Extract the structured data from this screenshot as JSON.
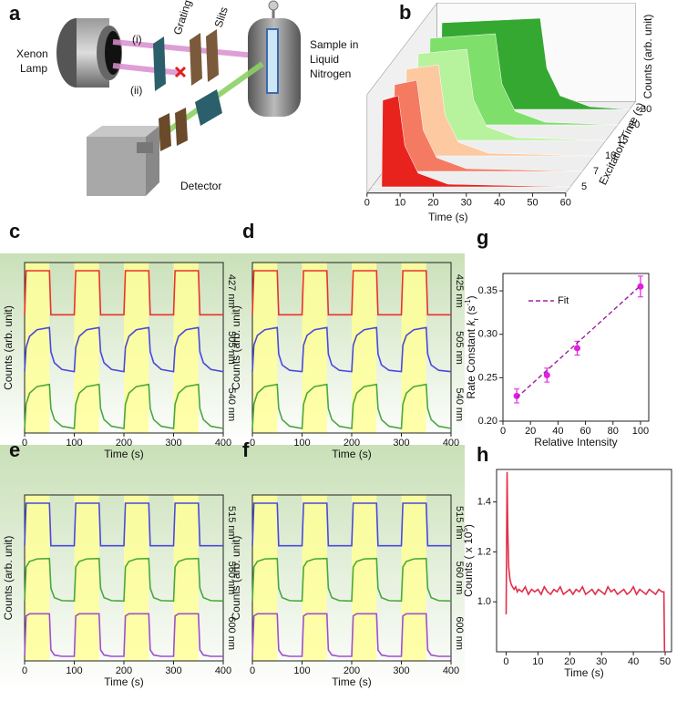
{
  "diagram": {
    "panel_label": "a",
    "lamp": [
      "Xenon",
      "Lamp"
    ],
    "path_i": "(i)",
    "path_ii": "(ii)",
    "grating": "Grating",
    "slits": "Slits",
    "sample": [
      "Sample in",
      "Liquid",
      "Nitrogen"
    ],
    "detector": "Detector"
  },
  "chart_data": [
    {
      "type": "waterfall",
      "panel_label": "b",
      "xlabel": "Time (s)",
      "ylabel": "Counts (arb. unit)",
      "zlabel": "Excitation Time (s)",
      "xlim": [
        0,
        60
      ],
      "xticks": [
        0,
        10,
        20,
        30,
        40,
        50,
        60
      ],
      "ylim": [
        0,
        1
      ],
      "series": [
        {
          "name": "5",
          "color": "#e8231d",
          "x": [
            0,
            3,
            3.3,
            8,
            10,
            14,
            23,
            60
          ],
          "values": [
            0,
            0,
            0.95,
            1,
            0.45,
            0.15,
            0.03,
            0
          ]
        },
        {
          "name": "7",
          "color": "#f47a62",
          "x": [
            0,
            3,
            3.3,
            10,
            12,
            16,
            25,
            60
          ],
          "values": [
            0,
            0,
            0.95,
            1,
            0.45,
            0.15,
            0.03,
            0
          ]
        },
        {
          "name": "10",
          "color": "#fcc9a0",
          "x": [
            0,
            3,
            3.3,
            13,
            15,
            19,
            28,
            60
          ],
          "values": [
            0,
            0,
            0.95,
            1,
            0.45,
            0.15,
            0.03,
            0
          ]
        },
        {
          "name": "15",
          "color": "#b7f29d",
          "x": [
            0,
            3,
            3.3,
            18,
            20,
            24,
            33,
            60
          ],
          "values": [
            0,
            0,
            0.95,
            1,
            0.45,
            0.15,
            0.03,
            0
          ]
        },
        {
          "name": "20",
          "color": "#7ee06a",
          "x": [
            0,
            3,
            3.3,
            23,
            25,
            29,
            38,
            60
          ],
          "values": [
            0,
            0,
            0.95,
            1,
            0.45,
            0.15,
            0.03,
            0
          ]
        },
        {
          "name": "30",
          "color": "#35a832",
          "x": [
            0,
            3,
            3.3,
            33,
            35,
            39,
            48,
            60
          ],
          "values": [
            0,
            0,
            0.95,
            1,
            0.45,
            0.15,
            0.03,
            0
          ]
        }
      ]
    },
    {
      "type": "line",
      "panel_label": "c",
      "xlabel": "Time (s)",
      "ylabel": "Counts (arb. unit)",
      "xlim": [
        0,
        400
      ],
      "xticks": [
        0,
        100,
        200,
        300,
        400
      ],
      "ylim": [
        0,
        1
      ],
      "shaded": [
        [
          0,
          50
        ],
        [
          100,
          150
        ],
        [
          200,
          250
        ],
        [
          300,
          350
        ]
      ],
      "shade_color": "#ffff9a",
      "x": [
        0,
        3,
        10,
        25,
        50,
        53,
        60,
        75,
        100,
        103,
        110,
        125,
        150,
        153,
        160,
        175,
        200,
        203,
        210,
        225,
        250,
        253,
        260,
        275,
        300,
        303,
        310,
        325,
        350,
        353,
        360,
        375,
        400
      ],
      "series": [
        {
          "name": "427 nm",
          "color": "#e8342a",
          "values": [
            0,
            1,
            1,
            1,
            1,
            0,
            0,
            0,
            0,
            1,
            1,
            1,
            1,
            0,
            0,
            0,
            0,
            1,
            1,
            1,
            1,
            0,
            0,
            0,
            0,
            1,
            1,
            1,
            1,
            0,
            0,
            0,
            0
          ]
        },
        {
          "name": "505 nm",
          "color": "#4a4ad8",
          "values": [
            0,
            0.55,
            0.8,
            0.95,
            1,
            0.45,
            0.2,
            0.05,
            0,
            0.55,
            0.8,
            0.95,
            1,
            0.45,
            0.2,
            0.05,
            0,
            0.55,
            0.8,
            0.95,
            1,
            0.45,
            0.2,
            0.05,
            0,
            0.55,
            0.8,
            0.95,
            1,
            0.45,
            0.2,
            0.05,
            0
          ]
        },
        {
          "name": "540 nm",
          "color": "#4aa83a",
          "values": [
            0,
            0.55,
            0.8,
            0.95,
            1,
            0.45,
            0.2,
            0.05,
            0,
            0.55,
            0.8,
            0.95,
            1,
            0.45,
            0.2,
            0.05,
            0,
            0.55,
            0.8,
            0.95,
            1,
            0.45,
            0.2,
            0.05,
            0,
            0.55,
            0.8,
            0.95,
            1,
            0.45,
            0.2,
            0.05,
            0
          ]
        }
      ]
    },
    {
      "type": "line",
      "panel_label": "d",
      "xlabel": "Time (s)",
      "ylabel": "Counts (arb. unit)",
      "xlim": [
        0,
        400
      ],
      "xticks": [
        0,
        100,
        200,
        300,
        400
      ],
      "ylim": [
        0,
        1
      ],
      "shaded": [
        [
          0,
          50
        ],
        [
          100,
          150
        ],
        [
          200,
          250
        ],
        [
          300,
          350
        ]
      ],
      "shade_color": "#ffff9a",
      "x": [
        0,
        3,
        10,
        25,
        50,
        53,
        60,
        75,
        100,
        103,
        110,
        125,
        150,
        153,
        160,
        175,
        200,
        203,
        210,
        225,
        250,
        253,
        260,
        275,
        300,
        303,
        310,
        325,
        350,
        353,
        360,
        375,
        400
      ],
      "series": [
        {
          "name": "425 nm",
          "color": "#e8342a",
          "values": [
            0,
            1,
            1,
            1,
            1,
            0,
            0,
            0,
            0,
            1,
            1,
            1,
            1,
            0,
            0,
            0,
            0,
            1,
            1,
            1,
            1,
            0,
            0,
            0,
            0,
            1,
            1,
            1,
            1,
            0,
            0,
            0,
            0
          ]
        },
        {
          "name": "505 nm",
          "color": "#4a4ad8",
          "values": [
            0,
            0.6,
            0.82,
            0.95,
            1,
            0.4,
            0.15,
            0.03,
            0,
            0.6,
            0.82,
            0.95,
            1,
            0.4,
            0.15,
            0.03,
            0,
            0.6,
            0.82,
            0.95,
            1,
            0.4,
            0.15,
            0.03,
            0,
            0.6,
            0.82,
            0.95,
            1,
            0.4,
            0.15,
            0.03,
            0
          ]
        },
        {
          "name": "540 nm",
          "color": "#4aa83a",
          "values": [
            0,
            0.55,
            0.8,
            0.95,
            1,
            0.45,
            0.2,
            0.05,
            0,
            0.55,
            0.8,
            0.95,
            1,
            0.45,
            0.2,
            0.05,
            0,
            0.55,
            0.8,
            0.95,
            1,
            0.45,
            0.2,
            0.05,
            0,
            0.55,
            0.8,
            0.95,
            1,
            0.45,
            0.2,
            0.05,
            0
          ]
        }
      ]
    },
    {
      "type": "line",
      "panel_label": "e",
      "xlabel": "Time (s)",
      "ylabel": "Counts (arb. unit)",
      "xlim": [
        0,
        400
      ],
      "xticks": [
        0,
        100,
        200,
        300,
        400
      ],
      "ylim": [
        0,
        1
      ],
      "shaded": [
        [
          0,
          50
        ],
        [
          100,
          150
        ],
        [
          200,
          250
        ],
        [
          300,
          350
        ]
      ],
      "shade_color": "#ffff9a",
      "x": [
        0,
        3,
        10,
        25,
        50,
        53,
        60,
        75,
        100,
        103,
        110,
        125,
        150,
        153,
        160,
        175,
        200,
        203,
        210,
        225,
        250,
        253,
        260,
        275,
        300,
        303,
        310,
        325,
        350,
        353,
        360,
        375,
        400
      ],
      "series": [
        {
          "name": "515 nm",
          "color": "#4a4ad8",
          "values": [
            0,
            1,
            1,
            1,
            1,
            0,
            0,
            0,
            0,
            1,
            1,
            1,
            1,
            0,
            0,
            0,
            0,
            1,
            1,
            1,
            1,
            0,
            0,
            0,
            0,
            1,
            1,
            1,
            1,
            0,
            0,
            0,
            0
          ]
        },
        {
          "name": "560 nm",
          "color": "#4aa83a",
          "values": [
            0,
            0.8,
            0.93,
            0.99,
            1,
            0.3,
            0.08,
            0.01,
            0,
            0.8,
            0.93,
            0.99,
            1,
            0.3,
            0.08,
            0.01,
            0,
            0.8,
            0.93,
            0.99,
            1,
            0.3,
            0.08,
            0.01,
            0,
            0.8,
            0.93,
            0.99,
            1,
            0.3,
            0.08,
            0.01,
            0
          ]
        },
        {
          "name": "600 nm",
          "color": "#9e4fd0",
          "values": [
            0,
            0.95,
            1,
            1,
            1,
            0.15,
            0.03,
            0,
            0,
            0.95,
            1,
            1,
            1,
            0.15,
            0.03,
            0,
            0,
            0.95,
            1,
            1,
            1,
            0.15,
            0.03,
            0,
            0,
            0.95,
            1,
            1,
            1,
            0.15,
            0.03,
            0,
            0
          ]
        }
      ]
    },
    {
      "type": "line",
      "panel_label": "f",
      "xlabel": "Time (s)",
      "ylabel": "Counts (arb. unit)",
      "xlim": [
        0,
        400
      ],
      "xticks": [
        0,
        100,
        200,
        300,
        400
      ],
      "ylim": [
        0,
        1
      ],
      "shaded": [
        [
          0,
          50
        ],
        [
          100,
          150
        ],
        [
          200,
          250
        ],
        [
          300,
          350
        ]
      ],
      "shade_color": "#ffff9a",
      "x": [
        0,
        3,
        10,
        25,
        50,
        53,
        60,
        75,
        100,
        103,
        110,
        125,
        150,
        153,
        160,
        175,
        200,
        203,
        210,
        225,
        250,
        253,
        260,
        275,
        300,
        303,
        310,
        325,
        350,
        353,
        360,
        375,
        400
      ],
      "series": [
        {
          "name": "515 nm",
          "color": "#4a4ad8",
          "values": [
            0,
            1,
            1,
            1,
            1,
            0,
            0,
            0,
            0,
            1,
            1,
            1,
            1,
            0,
            0,
            0,
            0,
            1,
            1,
            1,
            1,
            0,
            0,
            0,
            0,
            1,
            1,
            1,
            1,
            0,
            0,
            0,
            0
          ]
        },
        {
          "name": "560 nm",
          "color": "#4aa83a",
          "values": [
            0,
            0.8,
            0.93,
            0.99,
            1,
            0.3,
            0.08,
            0.01,
            0,
            0.8,
            0.93,
            0.99,
            1,
            0.3,
            0.08,
            0.01,
            0,
            0.8,
            0.93,
            0.99,
            1,
            0.3,
            0.08,
            0.01,
            0,
            0.8,
            0.93,
            0.99,
            1,
            0.3,
            0.08,
            0.01,
            0
          ]
        },
        {
          "name": "600 nm",
          "color": "#9e4fd0",
          "values": [
            0,
            0.95,
            1,
            1,
            1,
            0.15,
            0.03,
            0,
            0,
            0.95,
            1,
            1,
            1,
            0.15,
            0.03,
            0,
            0,
            0.95,
            1,
            1,
            1,
            0.15,
            0.03,
            0,
            0,
            0.95,
            1,
            1,
            1,
            0.15,
            0.03,
            0,
            0
          ]
        }
      ]
    },
    {
      "type": "scatter",
      "panel_label": "g",
      "xlabel": "Relative Intensity",
      "ylabel": [
        "Rate Constant ",
        "k",
        "r",
        " (s",
        "-1",
        ")"
      ],
      "ylabel_style": [
        "normal",
        "italic",
        "sub",
        "normal",
        "super",
        "normal"
      ],
      "xlim": [
        0,
        106
      ],
      "xticks": [
        0,
        20,
        40,
        60,
        80,
        100
      ],
      "ylim": [
        0.2,
        0.37
      ],
      "yticks": [
        {
          "value": 0.2,
          "label": "0.20"
        },
        {
          "value": 0.25,
          "label": "0.25"
        },
        {
          "value": 0.3,
          "label": "0.30"
        },
        {
          "value": 0.35,
          "label": "0.35"
        }
      ],
      "series": [
        {
          "color": "#e020e0",
          "x": [
            10,
            32,
            54,
            100
          ],
          "values": [
            0.229,
            0.253,
            0.284,
            0.355
          ],
          "errors": [
            0.008,
            0.008,
            0.008,
            0.012
          ]
        },
        {
          "name": "Fit",
          "color": "#a0209a",
          "style": "dashed",
          "x": [
            10,
            100
          ],
          "values": [
            0.227,
            0.356
          ]
        }
      ]
    },
    {
      "type": "line",
      "panel_label": "h",
      "xlabel": "Time (s)",
      "ylabel": [
        "Counts ( x 10",
        "5",
        ")"
      ],
      "ylabel_style": [
        "normal",
        "super",
        "normal"
      ],
      "xlim": [
        -3,
        52
      ],
      "xticks": [
        0,
        10,
        20,
        30,
        40,
        50
      ],
      "ylim": [
        0.8,
        1.53
      ],
      "yticks": [
        {
          "value": 1,
          "label": "1.0"
        },
        {
          "value": 1.2,
          "label": "1.2"
        },
        {
          "value": 1.4,
          "label": "1.4"
        }
      ],
      "x": [
        0,
        0.3,
        0.5,
        0.8,
        1.2,
        1.6,
        2,
        2.5,
        3,
        3.5,
        4,
        5,
        6,
        7,
        8,
        9,
        10,
        11,
        12,
        13,
        14,
        15,
        16,
        17,
        18,
        19,
        20,
        21,
        22,
        23,
        24,
        25,
        26,
        27,
        28,
        29,
        30,
        31,
        32,
        33,
        34,
        35,
        36,
        37,
        38,
        39,
        40,
        41,
        42,
        43,
        44,
        45,
        46,
        47,
        48,
        49,
        49.6,
        49.8
      ],
      "series": [
        {
          "color": "#e0304a",
          "values": [
            0.95,
            1.52,
            1.3,
            1.14,
            1.09,
            1.07,
            1.06,
            1.05,
            1.06,
            1.04,
            1.05,
            1.04,
            1.06,
            1.03,
            1.05,
            1.04,
            1.05,
            1.03,
            1.06,
            1.04,
            1.03,
            1.05,
            1.04,
            1.06,
            1.03,
            1.04,
            1.05,
            1.03,
            1.05,
            1.04,
            1.06,
            1.03,
            1.04,
            1.05,
            1.03,
            1.05,
            1.04,
            1.03,
            1.06,
            1.04,
            1.05,
            1.03,
            1.04,
            1.05,
            1.03,
            1.04,
            1.06,
            1.03,
            1.05,
            1.04,
            1.03,
            1.05,
            1.04,
            1.03,
            1.05,
            1.04,
            1.04,
            0.8
          ]
        }
      ]
    }
  ]
}
